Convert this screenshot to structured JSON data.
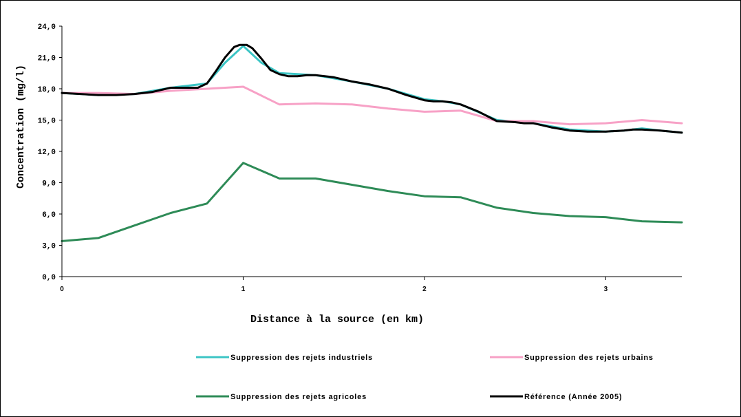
{
  "chart_data": {
    "type": "line",
    "title": "",
    "xlabel": "Distance à la source (en km)",
    "ylabel": "Concentration (mg/l)",
    "xlim": [
      0,
      3.42
    ],
    "ylim": [
      0,
      24
    ],
    "x_ticks": [
      "0",
      "1",
      "2",
      "3"
    ],
    "y_ticks": [
      "0,0",
      "3,0",
      "6,0",
      "9,0",
      "12,0",
      "15,0",
      "18,0",
      "21,0",
      "24,0"
    ],
    "grid": false,
    "legend_position": "bottom",
    "series": [
      {
        "name": "Suppression des rejets industriels",
        "color": "#3cc5c5",
        "x": [
          0,
          0.2,
          0.4,
          0.6,
          0.8,
          0.9,
          1.0,
          1.1,
          1.2,
          1.4,
          1.6,
          1.8,
          2.0,
          2.1,
          2.2,
          2.4,
          2.6,
          2.8,
          3.0,
          3.1,
          3.2,
          3.3,
          3.42
        ],
        "values": [
          17.6,
          17.4,
          17.5,
          18.1,
          18.5,
          20.5,
          22.1,
          20.5,
          19.5,
          19.3,
          18.7,
          18.0,
          17.0,
          16.8,
          16.5,
          15.0,
          14.7,
          14.1,
          13.9,
          14.0,
          14.2,
          14.0,
          13.8
        ]
      },
      {
        "name": "Suppression des rejets urbains",
        "color": "#f7a1c6",
        "x": [
          0,
          0.2,
          0.4,
          0.6,
          0.8,
          1.0,
          1.2,
          1.4,
          1.6,
          1.8,
          2.0,
          2.2,
          2.4,
          2.6,
          2.8,
          3.0,
          3.2,
          3.42
        ],
        "values": [
          17.6,
          17.6,
          17.5,
          17.8,
          18.0,
          18.2,
          16.5,
          16.6,
          16.5,
          16.1,
          15.8,
          15.9,
          14.9,
          14.9,
          14.6,
          14.7,
          15.0,
          14.7
        ]
      },
      {
        "name": "Suppression des rejets agricoles",
        "color": "#2e8b57",
        "x": [
          0,
          0.2,
          0.4,
          0.6,
          0.8,
          1.0,
          1.2,
          1.4,
          1.6,
          1.8,
          2.0,
          2.2,
          2.4,
          2.6,
          2.8,
          3.0,
          3.2,
          3.42
        ],
        "values": [
          3.4,
          3.7,
          4.9,
          6.1,
          7.0,
          10.9,
          9.4,
          9.4,
          8.8,
          8.2,
          7.7,
          7.6,
          6.6,
          6.1,
          5.8,
          5.7,
          5.3,
          5.2
        ]
      },
      {
        "name": "Référence (Année 2005)",
        "color": "#000000",
        "x": [
          0,
          0.2,
          0.3,
          0.4,
          0.5,
          0.6,
          0.75,
          0.8,
          0.85,
          0.9,
          0.95,
          0.98,
          1.0,
          1.02,
          1.05,
          1.1,
          1.15,
          1.2,
          1.25,
          1.3,
          1.35,
          1.4,
          1.5,
          1.6,
          1.7,
          1.8,
          1.9,
          2.0,
          2.05,
          2.1,
          2.15,
          2.2,
          2.3,
          2.4,
          2.5,
          2.55,
          2.6,
          2.7,
          2.8,
          2.9,
          3.0,
          3.1,
          3.15,
          3.2,
          3.3,
          3.42
        ],
        "values": [
          17.6,
          17.4,
          17.4,
          17.5,
          17.7,
          18.1,
          18.1,
          18.5,
          19.7,
          21.0,
          22.0,
          22.2,
          22.2,
          22.2,
          21.9,
          20.9,
          19.8,
          19.4,
          19.2,
          19.2,
          19.3,
          19.3,
          19.1,
          18.7,
          18.4,
          18.0,
          17.4,
          16.9,
          16.8,
          16.8,
          16.7,
          16.5,
          15.8,
          14.9,
          14.8,
          14.7,
          14.7,
          14.3,
          14.0,
          13.9,
          13.9,
          14.0,
          14.1,
          14.1,
          14.0,
          13.8
        ]
      }
    ]
  }
}
